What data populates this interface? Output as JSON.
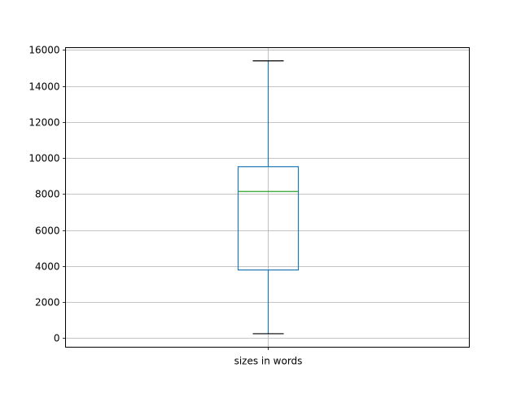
{
  "chart_data": {
    "type": "boxplot",
    "title": "",
    "xlabel": "",
    "ylabel": "",
    "categories": [
      "sizes in words"
    ],
    "boxes": [
      {
        "label": "sizes in words",
        "whisker_low": 240,
        "q1": 3780,
        "median": 8140,
        "q3": 9520,
        "whisker_high": 15400
      }
    ],
    "ylim": [
      -510,
      16135
    ],
    "yticks": [
      0,
      2000,
      4000,
      6000,
      8000,
      10000,
      12000,
      14000,
      16000
    ],
    "grid": true,
    "colors": {
      "box": "#1f77b4",
      "median": "#2ca02c",
      "caps": "#000000",
      "grid": "#b0b0b0"
    }
  }
}
